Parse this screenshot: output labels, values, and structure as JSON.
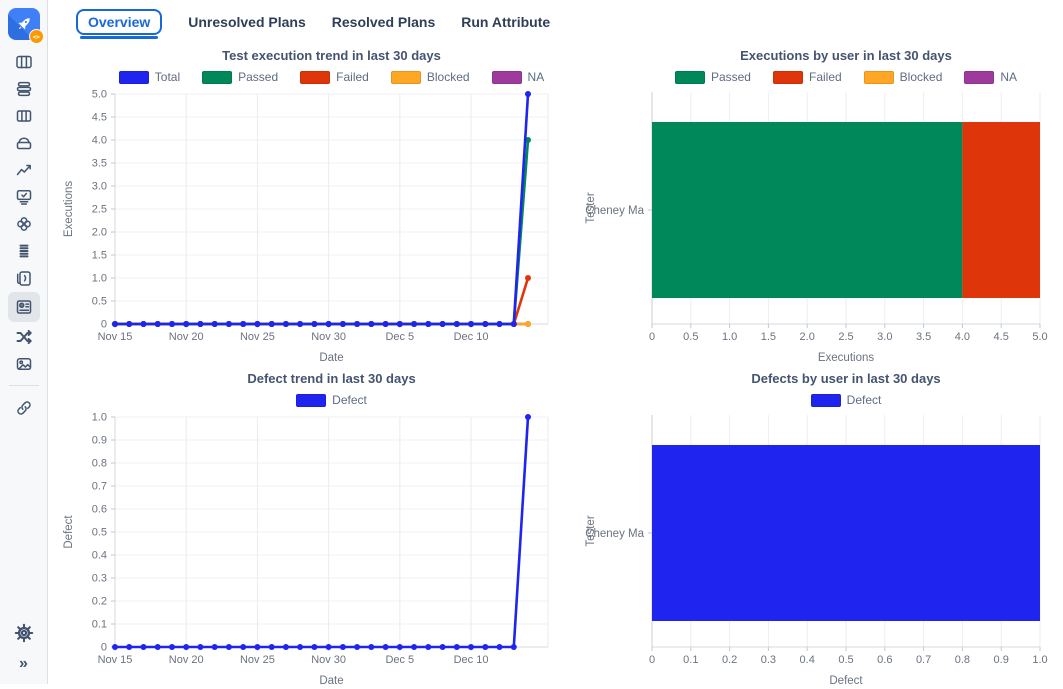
{
  "app": {
    "logo_badge": "<>",
    "accent_blue": "#1868DB"
  },
  "sidebar": {
    "selected_index": 9,
    "icons": [
      "boards-icon",
      "stack-icon",
      "columns-icon",
      "tray-icon",
      "trend-icon",
      "monitor-check-icon",
      "clover-icon",
      "rows-icon",
      "versions-icon",
      "report-card-icon",
      "shuffle-icon",
      "image-icon",
      "link-icon",
      "settings-gear-icon",
      "collapse-sidebar-icon"
    ]
  },
  "tabs": [
    {
      "label": "Overview",
      "active": true
    },
    {
      "label": "Unresolved Plans",
      "active": false
    },
    {
      "label": "Resolved Plans",
      "active": false
    },
    {
      "label": "Run Attribute",
      "active": false
    }
  ],
  "chart_data": [
    {
      "id": "execution-trend",
      "type": "line",
      "title": "Test execution trend in last 30 days",
      "xlabel": "Date",
      "ylabel": "Executions",
      "ylim": [
        0,
        5
      ],
      "y_ticks": [
        0,
        0.5,
        1.0,
        1.5,
        2.0,
        2.5,
        3.0,
        3.5,
        4.0,
        4.5,
        5.0
      ],
      "grid": true,
      "legend_position": "top",
      "x": [
        "Nov 15",
        "Nov 16",
        "Nov 17",
        "Nov 18",
        "Nov 19",
        "Nov 20",
        "Nov 21",
        "Nov 22",
        "Nov 23",
        "Nov 24",
        "Nov 25",
        "Nov 26",
        "Nov 27",
        "Nov 28",
        "Nov 29",
        "Nov 30",
        "Dec 1",
        "Dec 2",
        "Dec 3",
        "Dec 4",
        "Dec 5",
        "Dec 6",
        "Dec 7",
        "Dec 8",
        "Dec 9",
        "Dec 10",
        "Dec 11",
        "Dec 12",
        "Dec 13",
        "Dec 14"
      ],
      "x_tick_idx": [
        0,
        5,
        10,
        15,
        20,
        25
      ],
      "x_tick_labels": [
        "Nov 15",
        "Nov 20",
        "Nov 25",
        "Nov 30",
        "Dec 5",
        "Dec 10"
      ],
      "series": [
        {
          "name": "Total",
          "color": "#1f25ef",
          "values": [
            0,
            0,
            0,
            0,
            0,
            0,
            0,
            0,
            0,
            0,
            0,
            0,
            0,
            0,
            0,
            0,
            0,
            0,
            0,
            0,
            0,
            0,
            0,
            0,
            0,
            0,
            0,
            0,
            0,
            5
          ]
        },
        {
          "name": "Passed",
          "color": "#00875A",
          "values": [
            0,
            0,
            0,
            0,
            0,
            0,
            0,
            0,
            0,
            0,
            0,
            0,
            0,
            0,
            0,
            0,
            0,
            0,
            0,
            0,
            0,
            0,
            0,
            0,
            0,
            0,
            0,
            0,
            0,
            4
          ]
        },
        {
          "name": "Failed",
          "color": "#DE350B",
          "values": [
            0,
            0,
            0,
            0,
            0,
            0,
            0,
            0,
            0,
            0,
            0,
            0,
            0,
            0,
            0,
            0,
            0,
            0,
            0,
            0,
            0,
            0,
            0,
            0,
            0,
            0,
            0,
            0,
            0,
            1
          ]
        },
        {
          "name": "Blocked",
          "color": "#FFA724",
          "values": [
            0,
            0,
            0,
            0,
            0,
            0,
            0,
            0,
            0,
            0,
            0,
            0,
            0,
            0,
            0,
            0,
            0,
            0,
            0,
            0,
            0,
            0,
            0,
            0,
            0,
            0,
            0,
            0,
            0,
            0
          ]
        },
        {
          "name": "NA",
          "color": "#9E3A9E",
          "values": [
            0,
            0,
            0,
            0,
            0,
            0,
            0,
            0,
            0,
            0,
            0,
            0,
            0,
            0,
            0,
            0,
            0,
            0,
            0,
            0,
            0,
            0,
            0,
            0,
            0,
            0,
            0,
            0,
            0,
            0
          ]
        }
      ]
    },
    {
      "id": "executions-by-user",
      "type": "stacked-bar-horizontal",
      "title": "Executions by user in last 30 days",
      "xlabel": "Executions",
      "ylabel": "Tester",
      "categories": [
        "Cheney Ma"
      ],
      "xlim": [
        0,
        5
      ],
      "x_ticks": [
        0,
        0.5,
        1.0,
        1.5,
        2.0,
        2.5,
        3.0,
        3.5,
        4.0,
        4.5,
        5.0
      ],
      "grid": true,
      "legend_position": "top",
      "series": [
        {
          "name": "Passed",
          "color": "#00875A",
          "values": [
            4
          ]
        },
        {
          "name": "Failed",
          "color": "#DE350B",
          "values": [
            1
          ]
        },
        {
          "name": "Blocked",
          "color": "#FFA724",
          "values": [
            0
          ]
        },
        {
          "name": "NA",
          "color": "#9E3A9E",
          "values": [
            0
          ]
        }
      ]
    },
    {
      "id": "defect-trend",
      "type": "line",
      "title": "Defect trend in last 30 days",
      "xlabel": "Date",
      "ylabel": "Defect",
      "ylim": [
        0,
        1
      ],
      "y_ticks": [
        0,
        0.1,
        0.2,
        0.3,
        0.4,
        0.5,
        0.6,
        0.7,
        0.8,
        0.9,
        1.0
      ],
      "grid": true,
      "legend_position": "top",
      "x": [
        "Nov 15",
        "Nov 16",
        "Nov 17",
        "Nov 18",
        "Nov 19",
        "Nov 20",
        "Nov 21",
        "Nov 22",
        "Nov 23",
        "Nov 24",
        "Nov 25",
        "Nov 26",
        "Nov 27",
        "Nov 28",
        "Nov 29",
        "Nov 30",
        "Dec 1",
        "Dec 2",
        "Dec 3",
        "Dec 4",
        "Dec 5",
        "Dec 6",
        "Dec 7",
        "Dec 8",
        "Dec 9",
        "Dec 10",
        "Dec 11",
        "Dec 12",
        "Dec 13",
        "Dec 14"
      ],
      "x_tick_idx": [
        0,
        5,
        10,
        15,
        20,
        25
      ],
      "x_tick_labels": [
        "Nov 15",
        "Nov 20",
        "Nov 25",
        "Nov 30",
        "Dec 5",
        "Dec 10"
      ],
      "series": [
        {
          "name": "Defect",
          "color": "#1f25ef",
          "values": [
            0,
            0,
            0,
            0,
            0,
            0,
            0,
            0,
            0,
            0,
            0,
            0,
            0,
            0,
            0,
            0,
            0,
            0,
            0,
            0,
            0,
            0,
            0,
            0,
            0,
            0,
            0,
            0,
            0,
            1
          ]
        }
      ]
    },
    {
      "id": "defects-by-user",
      "type": "stacked-bar-horizontal",
      "title": "Defects by user in last 30 days",
      "xlabel": "Defect",
      "ylabel": "Tester",
      "categories": [
        "Cheney Ma"
      ],
      "xlim": [
        0,
        1
      ],
      "x_ticks": [
        0,
        0.1,
        0.2,
        0.3,
        0.4,
        0.5,
        0.6,
        0.7,
        0.8,
        0.9,
        1.0
      ],
      "grid": true,
      "legend_position": "top",
      "series": [
        {
          "name": "Defect",
          "color": "#1f25ef",
          "values": [
            1
          ]
        }
      ]
    }
  ]
}
